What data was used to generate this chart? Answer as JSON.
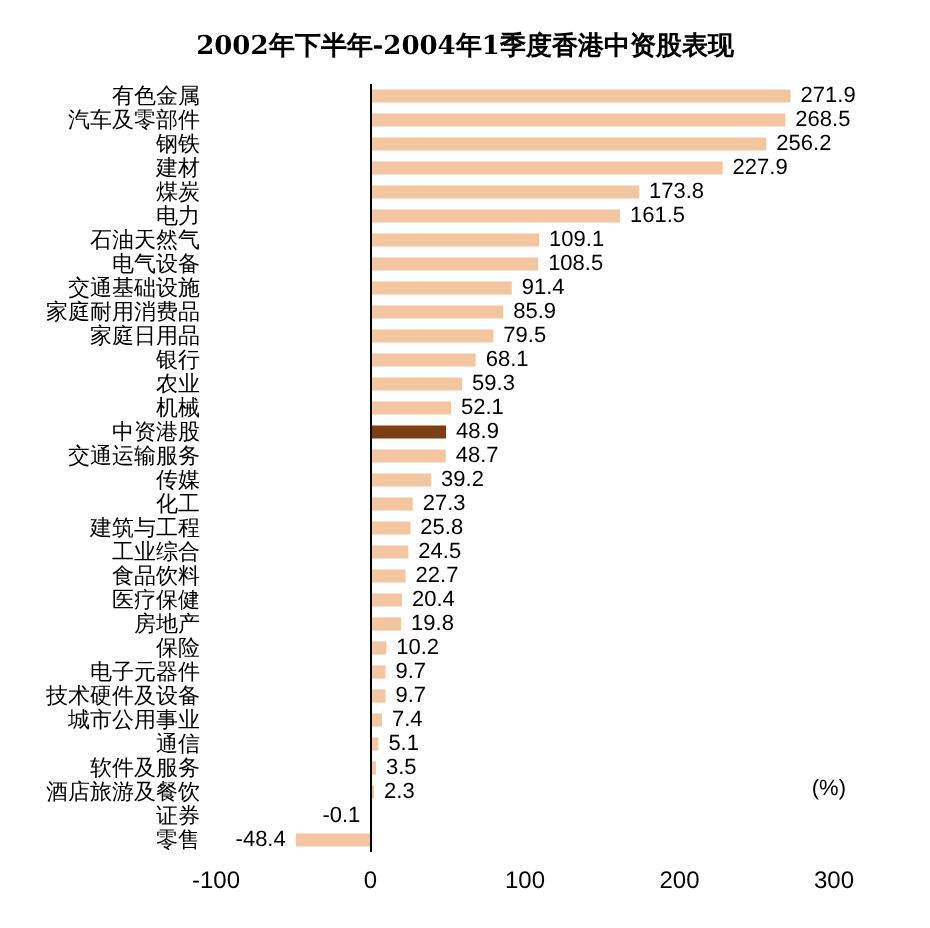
{
  "chart_data": {
    "type": "bar",
    "orientation": "horizontal",
    "title": "2002年下半年-2004年1季度香港中资股表现",
    "xlabel": "(%)",
    "categories": [
      "有色金属",
      "汽车及零部件",
      "钢铁",
      "建材",
      "煤炭",
      "电力",
      "石油天然气",
      "电气设备",
      "交通基础设施",
      "家庭耐用消费品",
      "家庭日用品",
      "银行",
      "农业",
      "机械",
      "中资港股",
      "交通运输服务",
      "传媒",
      "化工",
      "建筑与工程",
      "工业综合",
      "食品饮料",
      "医疗保健",
      "房地产",
      "保险",
      "电子元器件",
      "技术硬件及设备",
      "城市公用事业",
      "通信",
      "软件及服务",
      "酒店旅游及餐饮",
      "证券",
      "零售"
    ],
    "values": [
      271.9,
      268.5,
      256.2,
      227.9,
      173.8,
      161.5,
      109.1,
      108.5,
      91.4,
      85.9,
      79.5,
      68.1,
      59.3,
      52.1,
      48.9,
      48.7,
      39.2,
      27.3,
      25.8,
      24.5,
      22.7,
      20.4,
      19.8,
      10.2,
      9.7,
      9.7,
      7.4,
      5.1,
      3.5,
      2.3,
      -0.1,
      -48.4
    ],
    "colors": [
      "#f3c6a0",
      "#f3c6a0",
      "#f3c6a0",
      "#f3c6a0",
      "#f3c6a0",
      "#f3c6a0",
      "#f3c6a0",
      "#f3c6a0",
      "#f3c6a0",
      "#f3c6a0",
      "#f3c6a0",
      "#f3c6a0",
      "#f3c6a0",
      "#f3c6a0",
      "#7b3f12",
      "#f3c6a0",
      "#f3c6a0",
      "#f3c6a0",
      "#f3c6a0",
      "#f3c6a0",
      "#f3c6a0",
      "#f3c6a0",
      "#f3c6a0",
      "#f3c6a0",
      "#f3c6a0",
      "#f3c6a0",
      "#f3c6a0",
      "#f3c6a0",
      "#f3c6a0",
      "#f3c6a0",
      "#f3c6a0",
      "#f3c6a0"
    ],
    "xlim": [
      -100,
      300
    ],
    "xticks": [
      -100,
      0,
      100,
      200,
      300
    ],
    "data_labels": true,
    "grid": false,
    "ref_lines": [
      {
        "axis": "x",
        "value": 0,
        "color": "#000000",
        "line_style": "solid"
      }
    ]
  }
}
